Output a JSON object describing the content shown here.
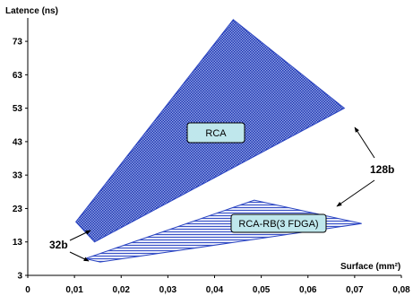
{
  "chart_data": {
    "type": "area",
    "xlabel": "Surface (mm²)",
    "ylabel": "Latence (ns)",
    "xlim": [
      0,
      0.08
    ],
    "ylim": [
      3,
      80
    ],
    "x_ticks": [
      "0",
      "0,01",
      "0,02",
      "0,03",
      "0,04",
      "0,05",
      "0,06",
      "0,07",
      "0,08"
    ],
    "y_ticks": [
      "3",
      "13",
      "23",
      "33",
      "43",
      "53",
      "63",
      "73"
    ],
    "grid": false,
    "regions": [
      {
        "label": "RCA",
        "pattern": "checker",
        "color": "#2b45c2",
        "vertices": [
          [
            0.0103,
            19
          ],
          [
            0.044,
            79.5
          ],
          [
            0.0678,
            53
          ],
          [
            0.0143,
            13
          ]
        ]
      },
      {
        "label": "RCA-RB(3 FDGA)",
        "pattern": "hatch",
        "color": "#2b45c2",
        "vertices": [
          [
            0.0123,
            8
          ],
          [
            0.0485,
            25.5
          ],
          [
            0.0715,
            18.5
          ],
          [
            0.0155,
            7
          ]
        ]
      }
    ],
    "annotations": [
      {
        "text": "128b",
        "arrows_to": [
          "RCA",
          "RCA-RB(3 FDGA)"
        ]
      },
      {
        "text": "32b",
        "arrows_to": [
          "RCA",
          "RCA-RB(3 FDGA)"
        ]
      }
    ]
  }
}
